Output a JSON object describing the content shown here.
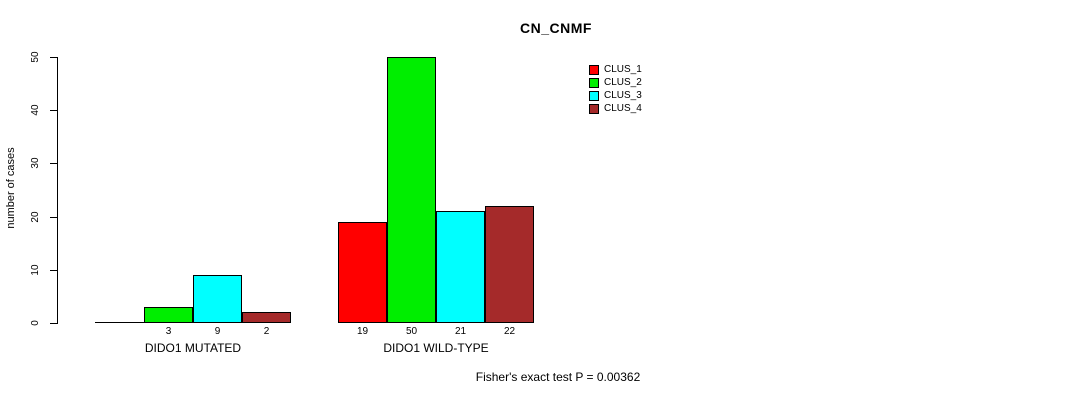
{
  "chart_data": {
    "type": "bar",
    "title": "CN_CNMF",
    "ylabel": "number of cases",
    "xlabel": "",
    "ylim": [
      0,
      50
    ],
    "yticks": [
      0,
      10,
      20,
      30,
      40,
      50
    ],
    "grid": false,
    "legend_position": "top-right",
    "groups": [
      {
        "label": "DIDO1 MUTATED"
      },
      {
        "label": "DIDO1 WILD-TYPE"
      }
    ],
    "series": [
      {
        "name": "CLUS_1",
        "color": "#FF0000",
        "values": [
          0,
          19
        ],
        "value_labels": [
          "",
          "19"
        ]
      },
      {
        "name": "CLUS_2",
        "color": "#00EE00",
        "values": [
          3,
          50
        ],
        "value_labels": [
          "3",
          "50"
        ]
      },
      {
        "name": "CLUS_3",
        "color": "#00FFFF",
        "values": [
          9,
          21
        ],
        "value_labels": [
          "9",
          "21"
        ]
      },
      {
        "name": "CLUS_4",
        "color": "#A52A2A",
        "values": [
          2,
          22
        ],
        "value_labels": [
          "2",
          "22"
        ]
      }
    ],
    "caption": "Fisher's exact test P = 0.00362"
  }
}
